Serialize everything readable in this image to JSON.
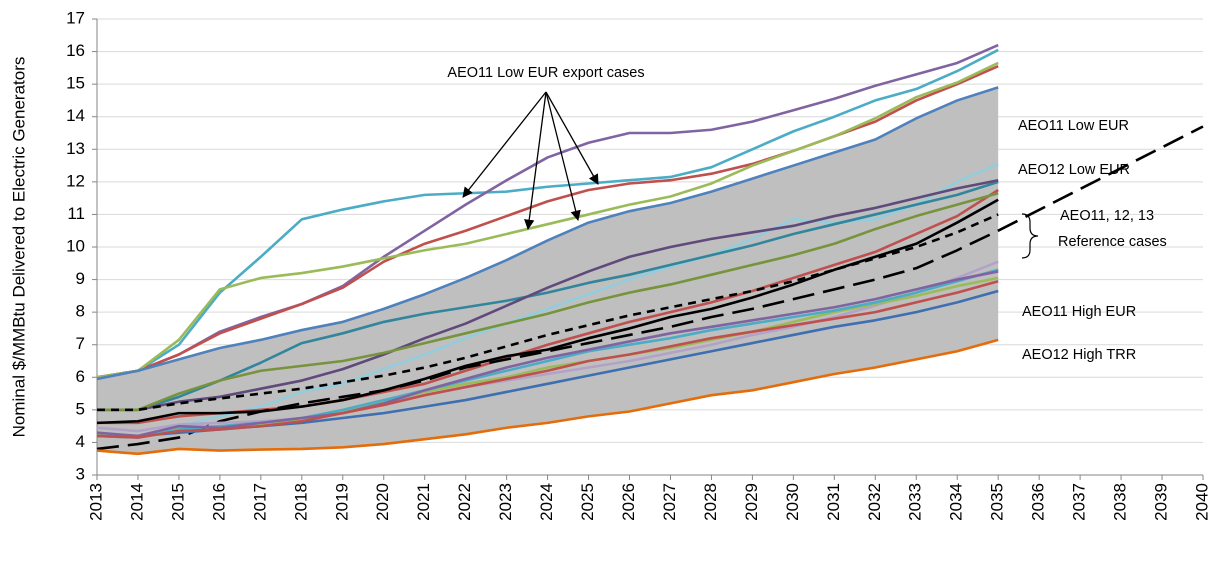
{
  "chart_data": {
    "type": "line",
    "y_label": "Nominal $/MMBtu Delivered to Electric Generators",
    "x": [
      2013,
      2014,
      2015,
      2016,
      2017,
      2018,
      2019,
      2020,
      2021,
      2022,
      2023,
      2024,
      2025,
      2026,
      2027,
      2028,
      2029,
      2030,
      2031,
      2032,
      2033,
      2034,
      2035
    ],
    "xlim": [
      2013,
      2040
    ],
    "xticks": [
      2013,
      2014,
      2015,
      2016,
      2017,
      2018,
      2019,
      2020,
      2021,
      2022,
      2023,
      2024,
      2025,
      2026,
      2027,
      2028,
      2029,
      2030,
      2031,
      2032,
      2033,
      2034,
      2035,
      2036,
      2037,
      2038,
      2039,
      2040
    ],
    "ylim": [
      3,
      17
    ],
    "yticks": [
      3,
      4,
      5,
      6,
      7,
      8,
      9,
      10,
      11,
      12,
      13,
      14,
      15,
      16,
      17
    ],
    "grid": true,
    "band": {
      "color": "#bfbfbf",
      "series": [
        4,
        14
      ]
    },
    "series": [
      {
        "color": "#4bacc6",
        "values": [
          6.0,
          6.2,
          7.0,
          8.6,
          9.7,
          10.85,
          11.15,
          11.4,
          11.6,
          11.65,
          11.7,
          11.85,
          11.95,
          12.05,
          12.15,
          12.45,
          13.0,
          13.55,
          14.0,
          14.5,
          14.85,
          15.4,
          16.05
        ]
      },
      {
        "color": "#8064a2",
        "values": [
          6.0,
          6.2,
          6.7,
          7.4,
          7.85,
          8.25,
          8.8,
          9.7,
          10.5,
          11.3,
          12.05,
          12.75,
          13.2,
          13.5,
          13.5,
          13.6,
          13.85,
          14.2,
          14.55,
          14.95,
          15.3,
          15.65,
          16.2
        ]
      },
      {
        "color": "#c0504d",
        "values": [
          6.0,
          6.2,
          6.7,
          7.35,
          7.8,
          8.25,
          8.75,
          9.55,
          10.1,
          10.5,
          10.95,
          11.4,
          11.75,
          11.95,
          12.05,
          12.25,
          12.55,
          12.95,
          13.4,
          13.85,
          14.5,
          15.0,
          15.55
        ]
      },
      {
        "color": "#9bbb59",
        "values": [
          6.0,
          6.2,
          7.15,
          8.7,
          9.05,
          9.2,
          9.4,
          9.65,
          9.9,
          10.1,
          10.4,
          10.7,
          11.0,
          11.3,
          11.55,
          11.95,
          12.5,
          12.95,
          13.4,
          13.95,
          14.6,
          15.05,
          15.65
        ]
      },
      {
        "color": "#4f81bd",
        "values": [
          5.95,
          6.2,
          6.55,
          6.9,
          7.15,
          7.45,
          7.7,
          8.1,
          8.55,
          9.05,
          9.6,
          10.2,
          10.75,
          11.1,
          11.35,
          11.7,
          12.1,
          12.5,
          12.9,
          13.3,
          13.95,
          14.5,
          14.9
        ]
      },
      {
        "color": "#93cddd",
        "values": [
          4.3,
          4.2,
          4.5,
          4.8,
          5.1,
          5.55,
          5.8,
          6.25,
          6.7,
          7.2,
          7.65,
          8.1,
          8.55,
          9.0,
          9.4,
          9.75,
          10.25,
          10.85,
          10.75,
          10.85,
          11.3,
          12.0,
          12.55
        ]
      },
      {
        "color": "#31859c",
        "values": [
          5.0,
          5.0,
          5.4,
          5.9,
          6.45,
          7.05,
          7.35,
          7.7,
          7.95,
          8.15,
          8.35,
          8.6,
          8.9,
          9.15,
          9.45,
          9.75,
          10.05,
          10.4,
          10.7,
          11.0,
          11.3,
          11.6,
          12.0
        ]
      },
      {
        "color": "#604a7b",
        "values": [
          5.0,
          5.0,
          5.25,
          5.4,
          5.65,
          5.9,
          6.25,
          6.7,
          7.2,
          7.65,
          8.2,
          8.75,
          9.25,
          9.7,
          10.0,
          10.25,
          10.45,
          10.65,
          10.95,
          11.2,
          11.5,
          11.8,
          12.05
        ]
      },
      {
        "color": "#c0504d",
        "values": [
          4.6,
          4.6,
          4.8,
          4.9,
          5.0,
          5.1,
          5.3,
          5.55,
          5.8,
          6.2,
          6.6,
          7.0,
          7.35,
          7.7,
          8.0,
          8.3,
          8.65,
          9.05,
          9.45,
          9.85,
          10.4,
          10.95,
          11.75
        ]
      },
      {
        "color": "#77933c",
        "values": [
          5.0,
          5.0,
          5.5,
          5.9,
          6.2,
          6.35,
          6.5,
          6.75,
          7.05,
          7.35,
          7.65,
          7.95,
          8.3,
          8.6,
          8.85,
          9.15,
          9.45,
          9.75,
          10.1,
          10.55,
          10.95,
          11.3,
          11.65
        ]
      },
      {
        "color": "#000000",
        "values": [
          4.6,
          4.65,
          4.9,
          4.9,
          4.95,
          5.1,
          5.3,
          5.6,
          5.95,
          6.35,
          6.65,
          6.85,
          7.2,
          7.5,
          7.85,
          8.1,
          8.45,
          8.85,
          9.3,
          9.7,
          10.1,
          10.75,
          11.45
        ]
      },
      {
        "color": "#000000",
        "dash": "short",
        "values": [
          5.0,
          5.0,
          5.2,
          5.35,
          5.5,
          5.65,
          5.85,
          6.05,
          6.3,
          6.6,
          6.95,
          7.3,
          7.6,
          7.9,
          8.15,
          8.4,
          8.65,
          8.95,
          9.3,
          9.65,
          10.0,
          10.45,
          11.0
        ]
      },
      {
        "color": "#000000",
        "dash": "long",
        "x": [
          2013,
          2014,
          2015,
          2016,
          2017,
          2018,
          2019,
          2020,
          2021,
          2022,
          2023,
          2024,
          2025,
          2026,
          2027,
          2028,
          2029,
          2030,
          2031,
          2032,
          2033,
          2034,
          2035,
          2040
        ],
        "values": [
          3.8,
          3.95,
          4.15,
          4.65,
          4.95,
          5.2,
          5.4,
          5.6,
          5.9,
          6.3,
          6.55,
          6.8,
          7.05,
          7.3,
          7.55,
          7.85,
          8.1,
          8.4,
          8.7,
          9.0,
          9.35,
          9.9,
          10.5,
          13.7
        ]
      },
      {
        "color": "#3e6fb0",
        "values": [
          4.2,
          4.2,
          4.3,
          4.4,
          4.5,
          4.6,
          4.75,
          4.9,
          5.1,
          5.3,
          5.55,
          5.8,
          6.05,
          6.3,
          6.55,
          6.8,
          7.05,
          7.3,
          7.55,
          7.75,
          8.0,
          8.3,
          8.65
        ]
      },
      {
        "color": "#e46c0a",
        "values": [
          3.75,
          3.65,
          3.8,
          3.75,
          3.78,
          3.8,
          3.85,
          3.95,
          4.1,
          4.25,
          4.45,
          4.6,
          4.8,
          4.95,
          5.2,
          5.45,
          5.6,
          5.85,
          6.1,
          6.3,
          6.55,
          6.8,
          7.15
        ]
      },
      {
        "color": "#b3a2c7",
        "values": [
          4.45,
          4.35,
          4.55,
          4.6,
          4.65,
          4.75,
          4.95,
          5.2,
          5.45,
          5.7,
          5.9,
          6.1,
          6.3,
          6.5,
          6.75,
          7.0,
          7.3,
          7.55,
          7.85,
          8.2,
          8.6,
          9.05,
          9.55
        ]
      },
      {
        "color": "#9bbb59",
        "values": [
          4.25,
          4.2,
          4.45,
          4.5,
          4.55,
          4.7,
          4.95,
          5.25,
          5.55,
          5.8,
          6.0,
          6.3,
          6.5,
          6.7,
          6.9,
          7.15,
          7.4,
          7.7,
          8.0,
          8.25,
          8.5,
          8.8,
          9.05
        ]
      },
      {
        "color": "#4bacc6",
        "values": [
          4.2,
          4.15,
          4.4,
          4.5,
          4.6,
          4.75,
          5.0,
          5.3,
          5.6,
          5.9,
          6.2,
          6.5,
          6.8,
          7.0,
          7.2,
          7.45,
          7.65,
          7.85,
          8.05,
          8.3,
          8.6,
          8.95,
          9.3
        ]
      },
      {
        "color": "#8064a2",
        "values": [
          4.3,
          4.2,
          4.5,
          4.45,
          4.6,
          4.75,
          4.9,
          5.2,
          5.6,
          5.95,
          6.3,
          6.6,
          6.85,
          7.1,
          7.35,
          7.55,
          7.75,
          7.95,
          8.15,
          8.4,
          8.7,
          9.0,
          9.25
        ]
      },
      {
        "color": "#c0504d",
        "values": [
          4.2,
          4.15,
          4.35,
          4.4,
          4.5,
          4.65,
          4.9,
          5.15,
          5.45,
          5.7,
          5.95,
          6.2,
          6.5,
          6.7,
          6.95,
          7.2,
          7.4,
          7.6,
          7.8,
          8.0,
          8.3,
          8.6,
          8.95
        ]
      }
    ],
    "annotations": [
      "AEO11 Low EUR export cases",
      "AEO11 Low EUR",
      "AEO12 Low EUR",
      "AEO11, 12, 13",
      "Reference cases",
      "AEO11 High EUR",
      "AEO12 High TRR"
    ]
  }
}
